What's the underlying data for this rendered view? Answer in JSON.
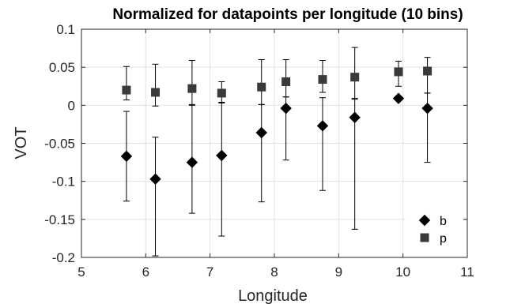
{
  "chart_data": {
    "type": "scatter",
    "title": "Normalized for datapoints per longitude (10 bins)",
    "xlabel": "Longitude",
    "ylabel": "VOT",
    "xlim": [
      5,
      11
    ],
    "ylim": [
      -0.2,
      0.1
    ],
    "xticks": [
      "5",
      "6",
      "7",
      "8",
      "9",
      "10",
      "11"
    ],
    "yticks": [
      "-0.2",
      "-0.15",
      "-0.1",
      "-0.05",
      "0",
      "0.05",
      "0.1"
    ],
    "xtick_values": [
      5,
      6,
      7,
      8,
      9,
      10,
      11
    ],
    "ytick_values": [
      -0.2,
      -0.15,
      -0.1,
      -0.05,
      0,
      0.05,
      0.1
    ],
    "grid": true,
    "legend_position": "bottom-right",
    "series": [
      {
        "name": "b",
        "marker": "diamond",
        "color": "#000000",
        "points": [
          {
            "x": 5.7,
            "y": -0.067,
            "low": -0.126,
            "high": -0.008
          },
          {
            "x": 6.15,
            "y": -0.097,
            "low": -0.198,
            "high": -0.042
          },
          {
            "x": 6.72,
            "y": -0.075,
            "low": -0.142,
            "high": 0.0
          },
          {
            "x": 7.18,
            "y": -0.066,
            "low": -0.172,
            "high": 0.004
          },
          {
            "x": 7.8,
            "y": -0.036,
            "low": -0.127,
            "high": 0.001
          },
          {
            "x": 8.18,
            "y": -0.004,
            "low": -0.072,
            "high": 0.011
          },
          {
            "x": 8.75,
            "y": -0.027,
            "low": -0.112,
            "high": 0.01
          },
          {
            "x": 9.25,
            "y": -0.016,
            "low": -0.163,
            "high": 0.009
          },
          {
            "x": 9.93,
            "y": 0.009,
            "low": 0.006,
            "high": 0.011
          },
          {
            "x": 10.38,
            "y": -0.004,
            "low": -0.075,
            "high": 0.016
          }
        ]
      },
      {
        "name": "p",
        "marker": "square",
        "color": "#3a3a3a",
        "points": [
          {
            "x": 5.7,
            "y": 0.02,
            "low": 0.007,
            "high": 0.051
          },
          {
            "x": 6.15,
            "y": 0.017,
            "low": -0.001,
            "high": 0.054
          },
          {
            "x": 6.72,
            "y": 0.022,
            "low": 0.001,
            "high": 0.059
          },
          {
            "x": 7.18,
            "y": 0.016,
            "low": 0.003,
            "high": 0.031
          },
          {
            "x": 7.8,
            "y": 0.024,
            "low": 0.001,
            "high": 0.06
          },
          {
            "x": 8.18,
            "y": 0.031,
            "low": 0.011,
            "high": 0.06
          },
          {
            "x": 8.75,
            "y": 0.034,
            "low": 0.017,
            "high": 0.059
          },
          {
            "x": 9.25,
            "y": 0.037,
            "low": 0.008,
            "high": 0.076
          },
          {
            "x": 9.93,
            "y": 0.044,
            "low": 0.025,
            "high": 0.058
          },
          {
            "x": 10.38,
            "y": 0.045,
            "low": 0.016,
            "high": 0.063
          }
        ]
      }
    ]
  }
}
